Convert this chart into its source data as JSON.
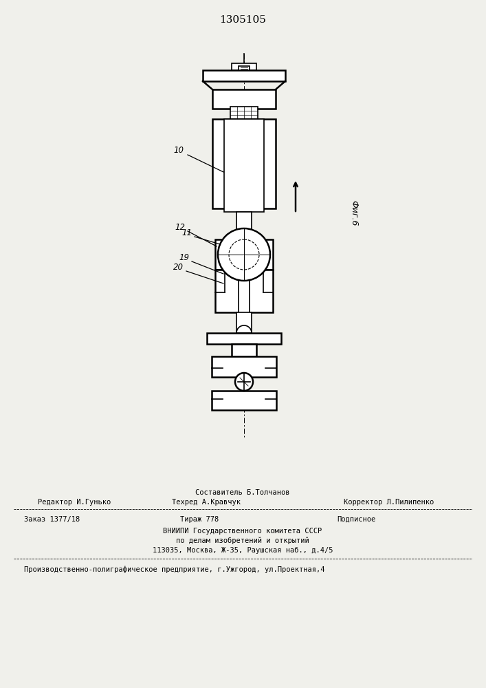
{
  "title": "1305105",
  "fig_label": "Фиг.6",
  "bg_color": "#f0f0eb",
  "line_color": "#000000",
  "footer": {
    "sestavitel_label": "Составитель Б.Толчанов",
    "redaktor_label": "Редактор И.Гунько",
    "tehred_label": "Техред А.Кравчук",
    "korrektor_label": "Корректор Л.Пилипенко",
    "zakaz": "Заказ 1377/18",
    "tirazh": "Тираж 778",
    "podpisnoe": "Подписное",
    "vniipи_line1": "ВНИИПИ Государственного комитета СССР",
    "vniipи_line2": "по делам изобретений и открытий",
    "vniipи_line3": "113035, Москва, Ж-35, Раушская наб., д.4/5",
    "factory": "Производственно-полиграфическое предприятие, г.Ужгород, ул.Проектная,4"
  }
}
